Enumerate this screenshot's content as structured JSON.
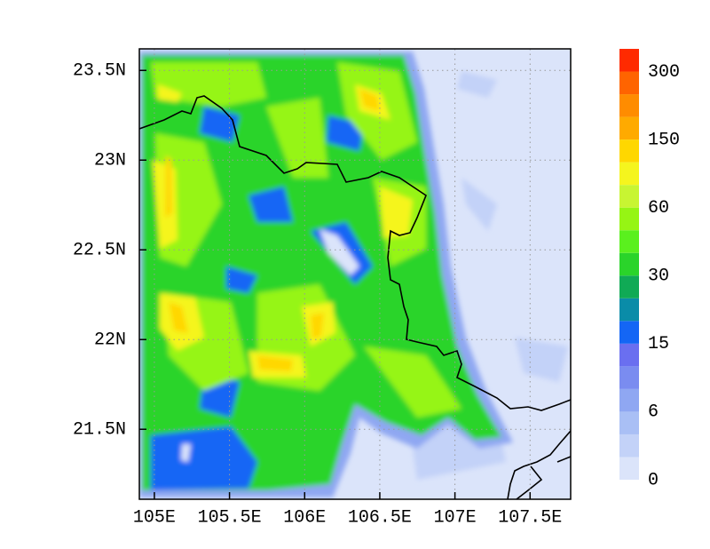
{
  "map": {
    "xlim": [
      104.9,
      107.77
    ],
    "ylim": [
      21.11,
      23.62
    ],
    "xticks": [
      {
        "value": 105,
        "label": "105E"
      },
      {
        "value": 105.5,
        "label": "105.5E"
      },
      {
        "value": 106,
        "label": "106E"
      },
      {
        "value": 106.5,
        "label": "106.5E"
      },
      {
        "value": 107,
        "label": "107E"
      },
      {
        "value": 107.5,
        "label": "107.5E"
      }
    ],
    "yticks": [
      {
        "value": 21.5,
        "label": "21.5N"
      },
      {
        "value": 22,
        "label": "22N"
      },
      {
        "value": 22.5,
        "label": "22.5N"
      },
      {
        "value": 23,
        "label": "23N"
      },
      {
        "value": 23.5,
        "label": "23.5N"
      }
    ],
    "grid": true,
    "colorbar": {
      "colors": [
        "#dbe4fa",
        "#c3d2f8",
        "#a9bff5",
        "#8fa7f2",
        "#7a8cf0",
        "#6a6ff0",
        "#1466f5",
        "#0a8ca8",
        "#10aa55",
        "#2ad42a",
        "#5af01e",
        "#96f514",
        "#c8f532",
        "#f5f51e",
        "#ffd700",
        "#ffaa00",
        "#ff8c00",
        "#ff6400",
        "#ff2a00"
      ],
      "labels": [
        0,
        6,
        15,
        30,
        60,
        150,
        300
      ]
    }
  }
}
